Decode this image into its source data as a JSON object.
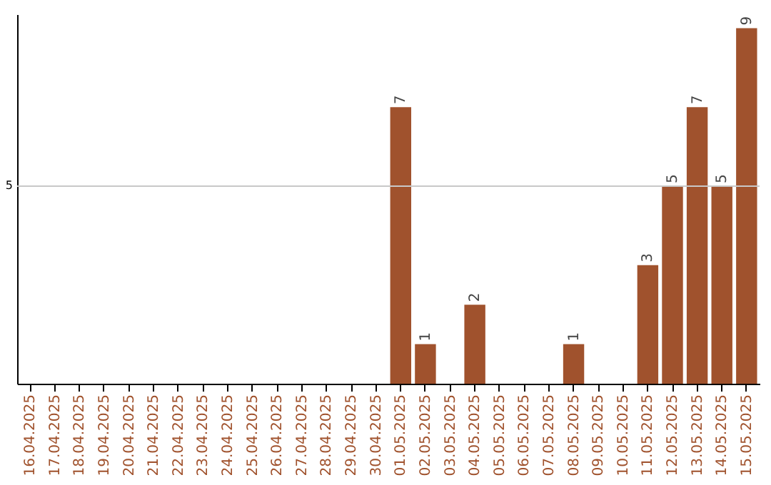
{
  "chart_data": {
    "type": "bar",
    "categories": [
      "16.04.2025",
      "17.04.2025",
      "18.04.2025",
      "19.04.2025",
      "20.04.2025",
      "21.04.2025",
      "22.04.2025",
      "23.04.2025",
      "24.04.2025",
      "25.04.2025",
      "26.04.2025",
      "27.04.2025",
      "28.04.2025",
      "29.04.2025",
      "30.04.2025",
      "01.05.2025",
      "02.05.2025",
      "03.05.2025",
      "04.05.2025",
      "05.05.2025",
      "06.05.2025",
      "07.05.2025",
      "08.05.2025",
      "09.05.2025",
      "10.05.2025",
      "11.05.2025",
      "12.05.2025",
      "13.05.2025",
      "14.05.2025",
      "15.05.2025"
    ],
    "values": [
      null,
      null,
      null,
      null,
      null,
      null,
      null,
      null,
      null,
      null,
      null,
      null,
      null,
      null,
      null,
      7,
      1,
      null,
      2,
      null,
      null,
      null,
      1,
      null,
      null,
      3,
      5,
      7,
      5,
      9
    ],
    "color": "#a0522d",
    "ylim": [
      0,
      9.35
    ],
    "data_labels": true,
    "ref_lines": [
      {
        "axis": "y",
        "value": 5,
        "label": "5",
        "color": "#c8c8c8"
      }
    ]
  }
}
